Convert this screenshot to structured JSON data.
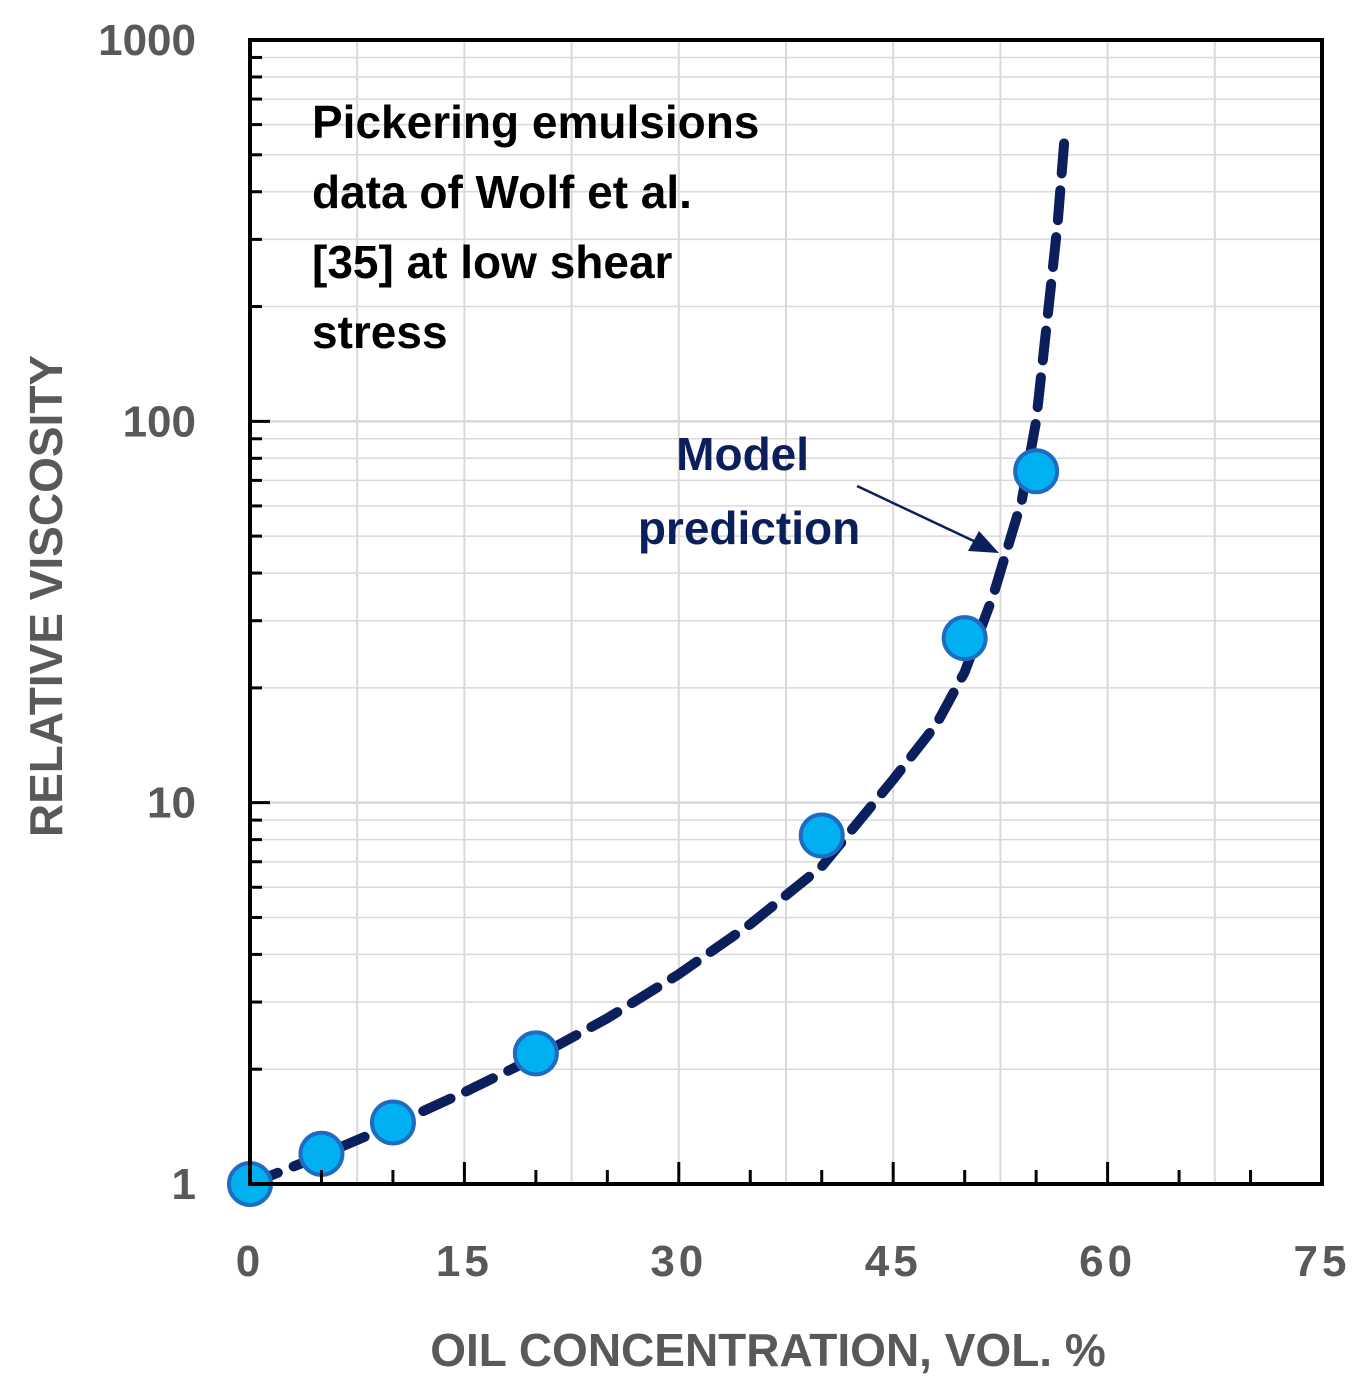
{
  "chart_data": {
    "type": "scatter",
    "title": "",
    "xlabel": "OIL CONCENTRATION, VOL. %",
    "ylabel": "RELATIVE VISCOSITY",
    "xlim": [
      0,
      75
    ],
    "ylim": [
      1,
      1000
    ],
    "yscale": "log",
    "grid": true,
    "x_ticks": [
      0,
      15,
      30,
      45,
      60,
      75
    ],
    "x_tick_labels": [
      "0",
      "15",
      "30",
      "45",
      "60",
      "75"
    ],
    "y_ticks": [
      1,
      10,
      100,
      1000
    ],
    "y_tick_labels": [
      "1",
      "10",
      "100",
      "1000"
    ],
    "series": [
      {
        "name": "Pickering emulsions data",
        "style": "markers",
        "x": [
          0,
          5,
          10,
          20,
          40,
          50,
          55
        ],
        "y": [
          1.0,
          1.2,
          1.45,
          2.2,
          8.2,
          27,
          74
        ]
      },
      {
        "name": "Model prediction",
        "style": "dashed-line",
        "x": [
          0,
          5,
          10,
          15,
          20,
          25,
          30,
          35,
          40,
          45,
          48,
          50,
          52,
          54,
          55,
          56,
          56.5,
          57
        ],
        "y": [
          1.0,
          1.19,
          1.43,
          1.74,
          2.15,
          2.72,
          3.55,
          4.8,
          6.8,
          11.5,
          16,
          22,
          35,
          62,
          100,
          220,
          330,
          560
        ]
      }
    ],
    "annotations": [
      {
        "text": [
          "Pickering emulsions",
          "data of Wolf et al.",
          "[35] at low shear",
          "stress"
        ]
      },
      {
        "text": [
          "Model",
          "prediction"
        ],
        "arrow_to": [
          53,
          45
        ]
      }
    ]
  },
  "colors": {
    "marker_fill": "#00b0f0",
    "marker_stroke": "#1f6bbf",
    "model_line": "#0b1f5c",
    "annotation_text": "#000000",
    "model_label": "#0b1f5c",
    "axis": "#000000",
    "grid": "#d9d9d9",
    "tick_text": "#595959"
  }
}
